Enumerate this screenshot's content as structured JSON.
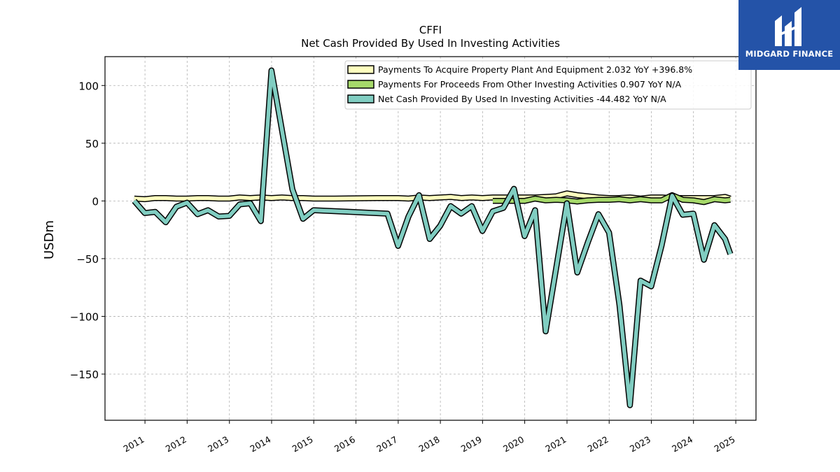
{
  "chart_data": {
    "type": "line",
    "title": "CFFI",
    "subtitle": "Net Cash Provided By Used In Investing Activities",
    "ylabel": "USDm",
    "ylim": [
      -190,
      125
    ],
    "xlim": [
      "2010-01-20",
      "2025-06-25"
    ],
    "yticks": [
      100,
      50,
      0,
      -50,
      -100,
      -150
    ],
    "ytick_labels": [
      "100",
      "50",
      "0",
      "−50",
      "−100",
      "−150"
    ],
    "xtick_labels": [
      "2011",
      "2012",
      "2013",
      "2014",
      "2015",
      "2016",
      "2017",
      "2018",
      "2019",
      "2020",
      "2021",
      "2022",
      "2023",
      "2024",
      "2025"
    ],
    "grid": true,
    "legend_position": "top-right",
    "series": [
      {
        "name": "Payments To Acquire Property Plant And Equipment",
        "legend": "Payments To Acquire Property Plant And Equipment  2.032 YoY +396.8%",
        "color": "#ffffbf",
        "points": [
          [
            "2010-09-30",
            2
          ],
          [
            "2010-12-31",
            1.5
          ],
          [
            "2011-03-31",
            2.5
          ],
          [
            "2011-06-30",
            2.5
          ],
          [
            "2011-09-30",
            2
          ],
          [
            "2011-12-31",
            2
          ],
          [
            "2012-03-31",
            2.5
          ],
          [
            "2012-06-30",
            2.5
          ],
          [
            "2012-09-30",
            2
          ],
          [
            "2012-12-31",
            2
          ],
          [
            "2013-03-31",
            3
          ],
          [
            "2013-06-30",
            2.5
          ],
          [
            "2013-09-30",
            3
          ],
          [
            "2013-12-31",
            2.5
          ],
          [
            "2014-03-31",
            3
          ],
          [
            "2014-06-30",
            2.5
          ],
          [
            "2014-09-30",
            2.5
          ],
          [
            "2014-12-31",
            2
          ],
          [
            "2015-06-30",
            2
          ],
          [
            "2016-06-30",
            2.5
          ],
          [
            "2016-12-31",
            2.5
          ],
          [
            "2017-03-31",
            2
          ],
          [
            "2017-06-30",
            3
          ],
          [
            "2017-09-30",
            2.5
          ],
          [
            "2018-03-31",
            3.5
          ],
          [
            "2018-06-30",
            2.5
          ],
          [
            "2018-09-30",
            3
          ],
          [
            "2018-12-31",
            2.5
          ],
          [
            "2019-03-31",
            3
          ],
          [
            "2019-06-30",
            3
          ],
          [
            "2019-09-30",
            3
          ],
          [
            "2019-12-31",
            3
          ],
          [
            "2020-03-31",
            3
          ],
          [
            "2020-06-30",
            3.5
          ],
          [
            "2020-09-30",
            4
          ],
          [
            "2020-12-31",
            6.5
          ],
          [
            "2021-03-31",
            5
          ],
          [
            "2021-06-30",
            4
          ],
          [
            "2021-09-30",
            3
          ],
          [
            "2021-12-31",
            2.5
          ],
          [
            "2022-03-31",
            2.5
          ],
          [
            "2022-06-30",
            3
          ],
          [
            "2022-09-30",
            2
          ],
          [
            "2022-12-31",
            3
          ],
          [
            "2023-03-31",
            3
          ],
          [
            "2023-06-30",
            2.5
          ],
          [
            "2023-09-30",
            2.5
          ],
          [
            "2023-12-31",
            2.5
          ],
          [
            "2024-03-31",
            2.5
          ],
          [
            "2024-06-30",
            2.5
          ],
          [
            "2024-09-30",
            3.5
          ],
          [
            "2024-11-15",
            2
          ]
        ]
      },
      {
        "name": "Payments For Proceeds From Other Investing Activities",
        "legend": "Payments For Proceeds From Other Investing Activities  0.907 YoY N/A",
        "color": "#a6d96a",
        "points": [
          [
            "2019-03-31",
            0
          ],
          [
            "2019-06-30",
            0
          ],
          [
            "2019-09-30",
            0
          ],
          [
            "2019-12-31",
            0
          ],
          [
            "2020-03-31",
            2
          ],
          [
            "2020-06-30",
            0.5
          ],
          [
            "2020-09-30",
            1
          ],
          [
            "2020-12-31",
            0.5
          ],
          [
            "2021-03-31",
            -0.5
          ],
          [
            "2021-06-30",
            0.5
          ],
          [
            "2021-09-30",
            1
          ],
          [
            "2021-12-31",
            1
          ],
          [
            "2022-03-31",
            1.5
          ],
          [
            "2022-06-30",
            0.5
          ],
          [
            "2022-09-30",
            1.5
          ],
          [
            "2022-12-31",
            0.5
          ],
          [
            "2023-03-31",
            0.5
          ],
          [
            "2023-06-30",
            5
          ],
          [
            "2023-09-30",
            1
          ],
          [
            "2023-12-31",
            0.5
          ],
          [
            "2024-03-31",
            -1
          ],
          [
            "2024-06-30",
            1.5
          ],
          [
            "2024-09-30",
            0.5
          ],
          [
            "2024-11-15",
            1
          ]
        ]
      },
      {
        "name": "Net Cash Provided By Used In Investing Activities",
        "legend": "Net Cash Provided By Used In Investing Activities  -44.482 YoY N/A",
        "color": "#80cdc1",
        "points": [
          [
            "2010-09-30",
            0
          ],
          [
            "2010-12-31",
            -10.5
          ],
          [
            "2011-03-31",
            -9.5
          ],
          [
            "2011-06-30",
            -18.5
          ],
          [
            "2011-09-30",
            -5
          ],
          [
            "2011-12-31",
            -1.5
          ],
          [
            "2012-03-31",
            -11.5
          ],
          [
            "2012-06-30",
            -8
          ],
          [
            "2012-09-30",
            -13.5
          ],
          [
            "2012-12-31",
            -13
          ],
          [
            "2013-03-31",
            -3
          ],
          [
            "2013-06-30",
            -2
          ],
          [
            "2013-09-30",
            -17.5
          ],
          [
            "2013-12-31",
            113
          ],
          [
            "2014-06-30",
            10
          ],
          [
            "2014-09-30",
            -15.5
          ],
          [
            "2014-12-31",
            -8
          ],
          [
            "2016-09-30",
            -11
          ],
          [
            "2016-12-31",
            -39
          ],
          [
            "2017-03-31",
            -13.5
          ],
          [
            "2017-06-30",
            5
          ],
          [
            "2017-09-30",
            -33
          ],
          [
            "2017-12-31",
            -21.5
          ],
          [
            "2018-03-31",
            -4.5
          ],
          [
            "2018-06-30",
            -11
          ],
          [
            "2018-09-30",
            -4.5
          ],
          [
            "2018-12-31",
            -26
          ],
          [
            "2019-03-31",
            -9
          ],
          [
            "2019-06-30",
            -6
          ],
          [
            "2019-09-30",
            10.5
          ],
          [
            "2019-12-31",
            -30.5
          ],
          [
            "2020-03-31",
            -8
          ],
          [
            "2020-06-30",
            -113
          ],
          [
            "2020-09-30",
            -58
          ],
          [
            "2020-12-31",
            -2
          ],
          [
            "2021-03-31",
            -62
          ],
          [
            "2021-06-30",
            -36
          ],
          [
            "2021-09-30",
            -11.5
          ],
          [
            "2021-12-31",
            -27.5
          ],
          [
            "2022-03-31",
            -90
          ],
          [
            "2022-06-30",
            -177
          ],
          [
            "2022-09-30",
            -69
          ],
          [
            "2022-12-31",
            -74
          ],
          [
            "2023-03-31",
            -38.5
          ],
          [
            "2023-06-30",
            4.5
          ],
          [
            "2023-09-30",
            -12
          ],
          [
            "2023-12-31",
            -11
          ],
          [
            "2024-03-31",
            -51
          ],
          [
            "2024-06-30",
            -21
          ],
          [
            "2024-09-30",
            -33
          ],
          [
            "2024-11-15",
            -46
          ]
        ]
      }
    ]
  },
  "logo": {
    "name": "MIDGARD FINANCE",
    "bg_color": "#2453a8",
    "icon": "midgard-logo-mark"
  }
}
